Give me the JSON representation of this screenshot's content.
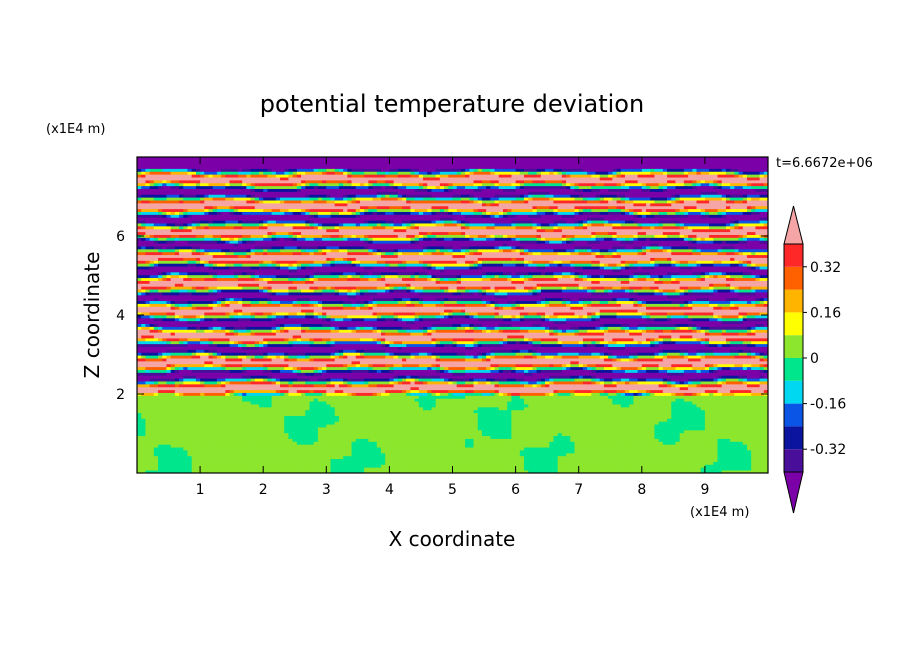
{
  "chart_data": {
    "type": "heatmap",
    "title": "potential temperature deviation",
    "xlabel": "X coordinate",
    "ylabel": "Z coordinate",
    "x_unit": "(x1E4 m)",
    "y_unit": "(x1E4 m)",
    "time_label": "t=6.6672e+06",
    "xlim": [
      0,
      10
    ],
    "ylim": [
      0,
      8
    ],
    "x_ticks": [
      1,
      2,
      3,
      4,
      5,
      6,
      7,
      8,
      9
    ],
    "y_ticks": [
      2,
      4,
      6
    ],
    "x_tick_labels": [
      "1",
      "2",
      "3",
      "4",
      "5",
      "6",
      "7",
      "8",
      "9"
    ],
    "y_tick_labels": [
      "2",
      "4",
      "6"
    ],
    "colorbar": {
      "levels": [
        -0.48,
        -0.4,
        -0.32,
        -0.24,
        -0.16,
        -0.08,
        0,
        0.08,
        0.16,
        0.24,
        0.32,
        0.4,
        0.48
      ],
      "colors": [
        "#7b00a8",
        "#4a0f9a",
        "#0a149e",
        "#0a55e6",
        "#00d7f0",
        "#00e68c",
        "#8ce62d",
        "#ffff00",
        "#ffb400",
        "#ff6000",
        "#ff2828",
        "#f5a5a5"
      ],
      "tick_labels": [
        "0.32",
        "0.16",
        "0",
        "-0.16",
        "-0.32"
      ],
      "tick_values": [
        0.32,
        0.16,
        0,
        -0.16,
        -0.32
      ],
      "extend": "both"
    },
    "bands": [
      {
        "z_bottom": 0.0,
        "z_top": 2.0,
        "pattern": "weak",
        "note_value": 0.0
      },
      {
        "z_bottom": 2.0,
        "z_top": 8.0,
        "pattern": "layered",
        "amplitude": 0.5
      }
    ]
  }
}
